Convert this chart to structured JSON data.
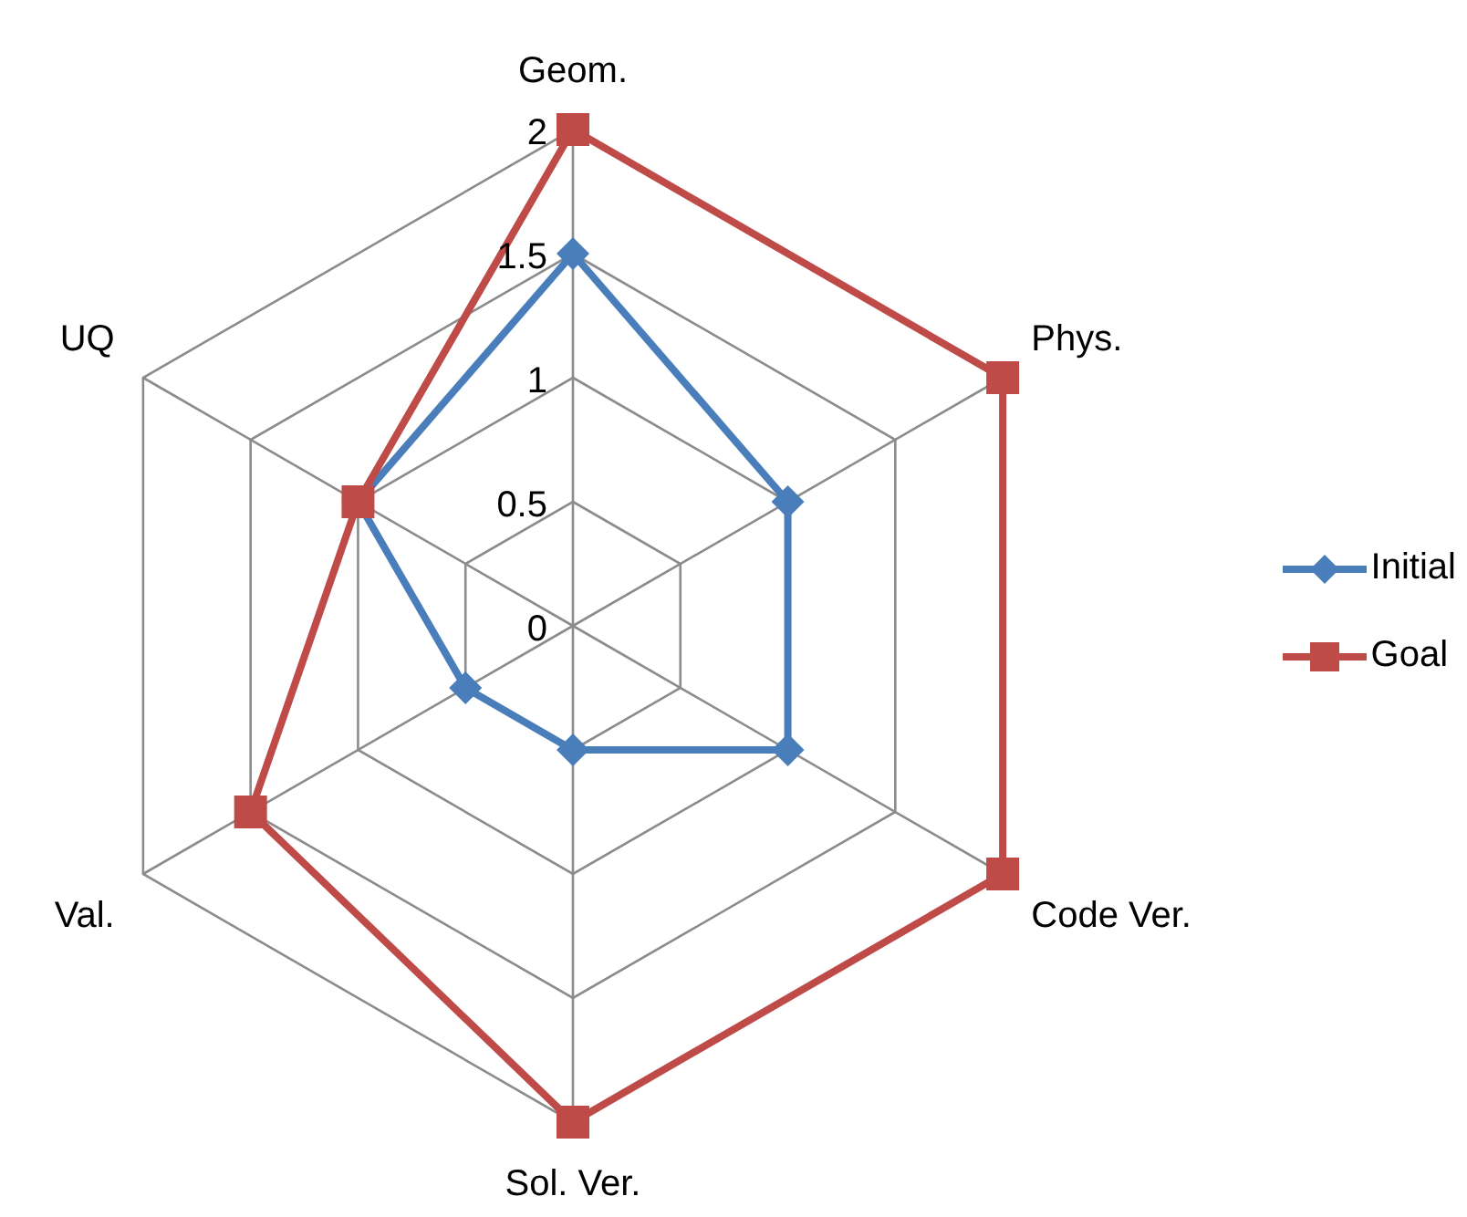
{
  "chart_data": {
    "type": "radar",
    "categories": [
      "Geom.",
      "Phys.",
      "Code Ver.",
      "Sol. Ver.",
      "Val.",
      "UQ"
    ],
    "series": [
      {
        "name": "Initial",
        "color": "#4a7ebb",
        "marker": "diamond",
        "values": [
          1.5,
          1,
          1,
          0.5,
          0.5,
          1
        ]
      },
      {
        "name": "Goal",
        "color": "#be4b48",
        "marker": "square",
        "values": [
          2,
          2,
          2,
          2,
          1.5,
          1
        ]
      }
    ],
    "ylim": [
      0,
      2
    ],
    "yticks": [
      0,
      0.5,
      1,
      1.5,
      2
    ],
    "grid": true,
    "legend": "right"
  }
}
